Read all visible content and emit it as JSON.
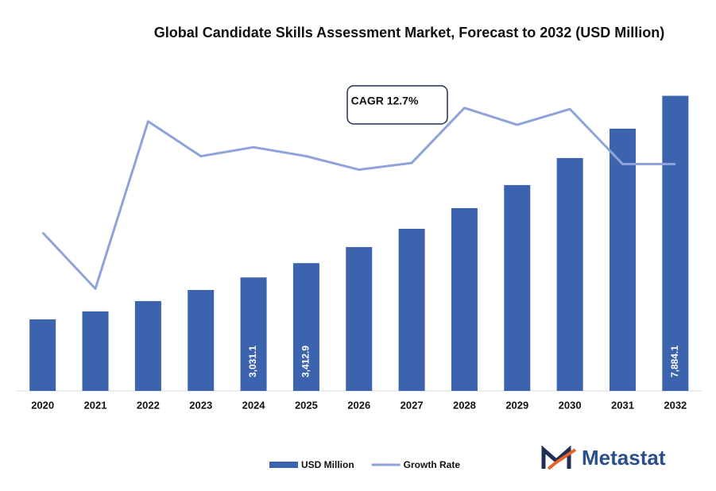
{
  "chart_data": {
    "type": "bar-line",
    "title": "Global Candidate Skills Assessment Market, Forecast to 2032 (USD Million)",
    "categories": [
      "2020",
      "2021",
      "2022",
      "2023",
      "2024",
      "2025",
      "2026",
      "2027",
      "2028",
      "2029",
      "2030",
      "2031",
      "2032"
    ],
    "series": [
      {
        "name": "USD Million",
        "type": "bar",
        "color": "#3c63ad",
        "values": [
          1911,
          2123,
          2399,
          2696,
          3031.1,
          3412.9,
          3843,
          4331,
          4883,
          5499,
          6221,
          7006,
          7884.1
        ],
        "value_labels": [
          null,
          null,
          null,
          null,
          "3,031.1",
          "3,412.9",
          null,
          null,
          null,
          null,
          null,
          null,
          "7,884.1"
        ]
      },
      {
        "name": "Growth Rate",
        "type": "line",
        "axis": "y2",
        "color": "#8fa3db",
        "values": [
          11.41,
          10.91,
          12.4,
          12.09,
          12.17,
          12.09,
          11.97,
          12.03,
          12.52,
          12.37,
          12.51,
          12.02,
          12.02
        ]
      }
    ],
    "ylim": [
      0,
      9000
    ],
    "y2lim": [
      10,
      13
    ],
    "annotation": "CAGR 12.7%",
    "brand": "Metastat"
  }
}
